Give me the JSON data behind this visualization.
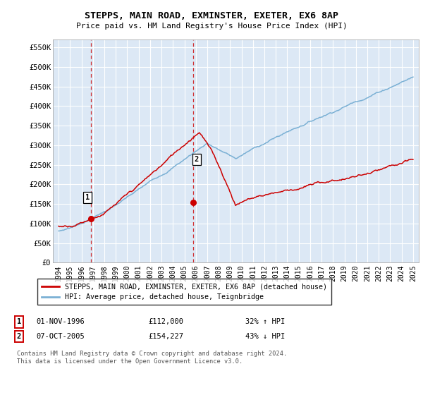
{
  "title": "STEPPS, MAIN ROAD, EXMINSTER, EXETER, EX6 8AP",
  "subtitle": "Price paid vs. HM Land Registry's House Price Index (HPI)",
  "ylabel_ticks": [
    "£0",
    "£50K",
    "£100K",
    "£150K",
    "£200K",
    "£250K",
    "£300K",
    "£350K",
    "£400K",
    "£450K",
    "£500K",
    "£550K"
  ],
  "ytick_vals": [
    0,
    50000,
    100000,
    150000,
    200000,
    250000,
    300000,
    350000,
    400000,
    450000,
    500000,
    550000
  ],
  "ylim": [
    0,
    570000
  ],
  "xlim_start": 1993.5,
  "xlim_end": 2025.5,
  "xtick_labels": [
    "1994",
    "1995",
    "1996",
    "1997",
    "1998",
    "1999",
    "2000",
    "2001",
    "2002",
    "2003",
    "2004",
    "2005",
    "2006",
    "2007",
    "2008",
    "2009",
    "2010",
    "2011",
    "2012",
    "2013",
    "2014",
    "2015",
    "2016",
    "2017",
    "2018",
    "2019",
    "2020",
    "2021",
    "2022",
    "2023",
    "2024",
    "2025"
  ],
  "xtick_vals": [
    1994,
    1995,
    1996,
    1997,
    1998,
    1999,
    2000,
    2001,
    2002,
    2003,
    2004,
    2005,
    2006,
    2007,
    2008,
    2009,
    2010,
    2011,
    2012,
    2013,
    2014,
    2015,
    2016,
    2017,
    2018,
    2019,
    2020,
    2021,
    2022,
    2023,
    2024,
    2025
  ],
  "sale1_x": 1996.83,
  "sale1_y": 112000,
  "sale1_label": "1",
  "sale2_x": 2005.77,
  "sale2_y": 154227,
  "sale2_label": "2",
  "legend_line1": "STEPPS, MAIN ROAD, EXMINSTER, EXETER, EX6 8AP (detached house)",
  "legend_line2": "HPI: Average price, detached house, Teignbridge",
  "ann1_date": "01-NOV-1996",
  "ann1_price": "£112,000",
  "ann1_hpi": "32% ↑ HPI",
  "ann2_date": "07-OCT-2005",
  "ann2_price": "£154,227",
  "ann2_hpi": "43% ↓ HPI",
  "footer": "Contains HM Land Registry data © Crown copyright and database right 2024.\nThis data is licensed under the Open Government Licence v3.0.",
  "line_color_red": "#cc0000",
  "line_color_blue": "#7ab0d4",
  "bg_color": "#dce8f5",
  "grid_color": "#ffffff",
  "vline_color": "#cc0000"
}
